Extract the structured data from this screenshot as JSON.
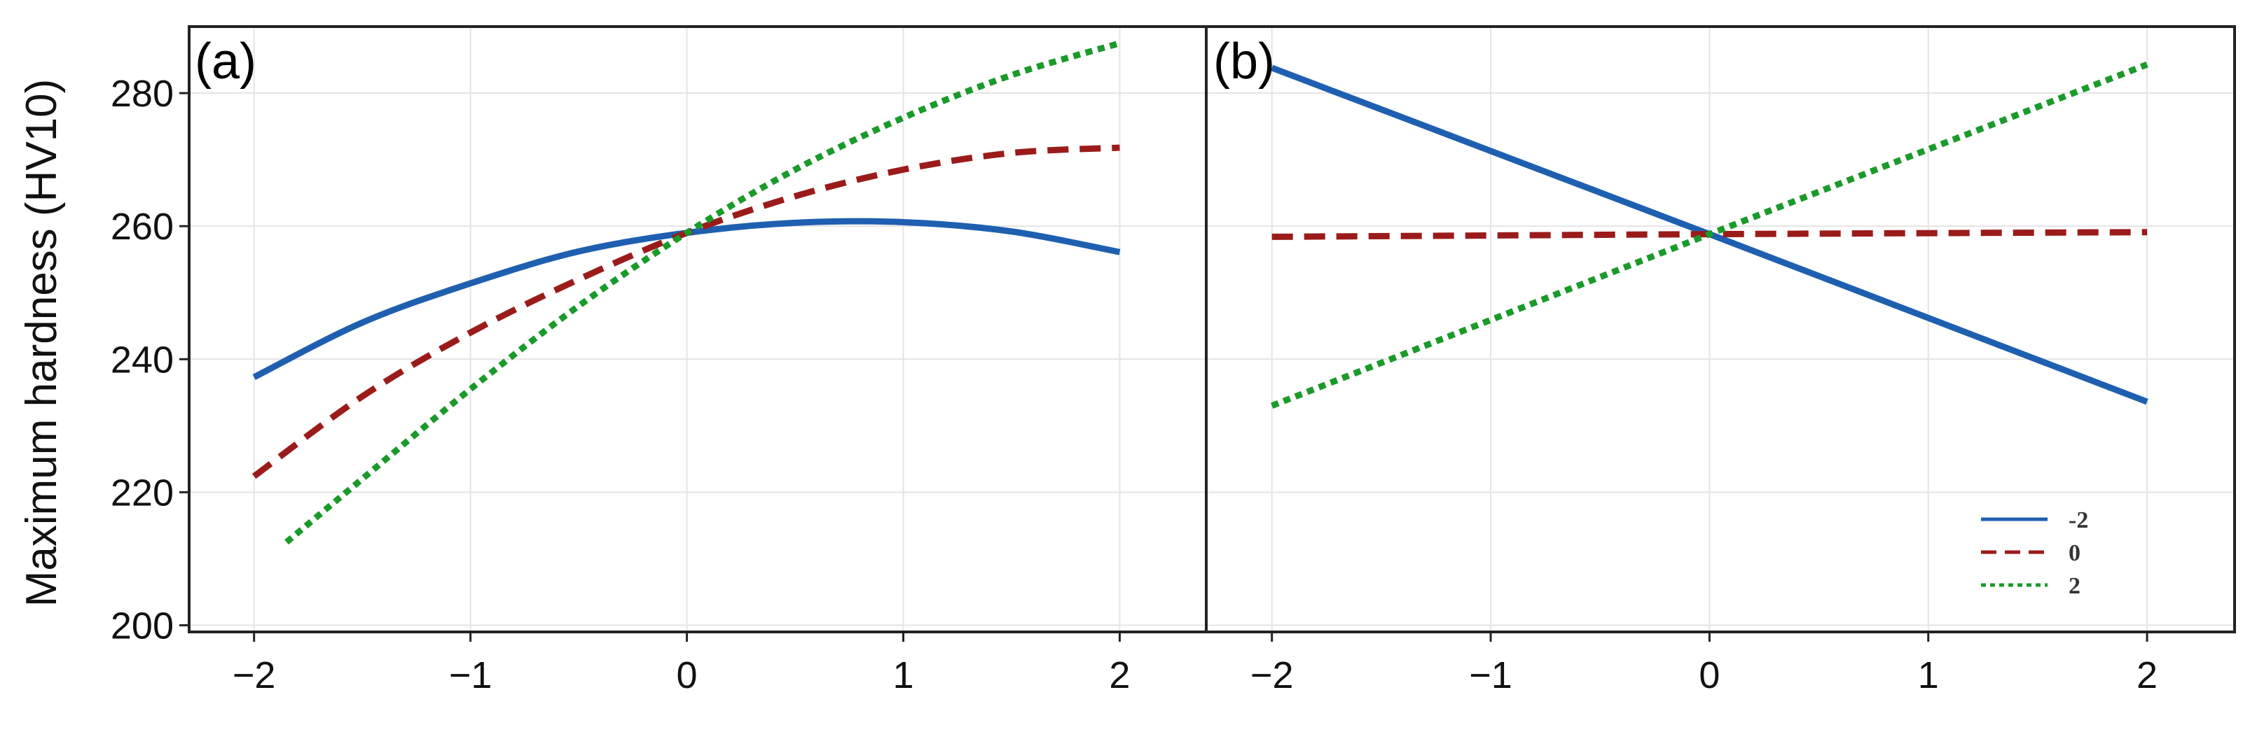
{
  "ylabel": "Maximum hardness (HV10)",
  "colors": {
    "blue": "#1f5fb0",
    "red": "#9b1b1b",
    "green": "#1a9a2a"
  },
  "chart_data": [
    {
      "type": "line",
      "panel_label": "(a)",
      "xlabel": "",
      "ylabel": "Maximum hardness (HV10)",
      "xlim": [
        -2.3,
        2.4
      ],
      "ylim": [
        199,
        290
      ],
      "x_ticks": [
        "−2",
        "−1",
        "0",
        "1",
        "2"
      ],
      "x_tick_values": [
        -2,
        -1,
        0,
        1,
        2
      ],
      "y_ticks": [
        "200",
        "220",
        "240",
        "260",
        "280"
      ],
      "y_tick_values": [
        200,
        220,
        240,
        260,
        280
      ],
      "grid": true,
      "series": [
        {
          "name": "-2",
          "style": "solid",
          "color": "#1f5fb0",
          "x": [
            -2,
            -1.5,
            -1,
            -0.5,
            0,
            0.5,
            1,
            1.5,
            2
          ],
          "y": [
            237.3,
            245.5,
            251.4,
            256.2,
            259.0,
            260.5,
            260.6,
            259.2,
            256.1
          ]
        },
        {
          "name": "0",
          "style": "dashed",
          "color": "#9b1b1b",
          "x": [
            -2,
            -1.5,
            -1,
            -0.5,
            0,
            0.5,
            1,
            1.5,
            2
          ],
          "y": [
            222.4,
            234.4,
            244.0,
            252.0,
            259.0,
            264.5,
            268.5,
            271.0,
            271.8
          ]
        },
        {
          "name": "2",
          "style": "dotted",
          "color": "#1a9a2a",
          "x": [
            -1.85,
            -1.5,
            -1,
            -0.5,
            0,
            0.5,
            1,
            1.5,
            2
          ],
          "y": [
            212.5,
            222.0,
            235.5,
            248.0,
            259.0,
            268.5,
            276.3,
            282.7,
            287.5
          ]
        }
      ]
    },
    {
      "type": "line",
      "panel_label": "(b)",
      "xlabel": "",
      "ylabel": "",
      "xlim": [
        -2.3,
        2.4
      ],
      "ylim": [
        199,
        290
      ],
      "x_ticks": [
        "−2",
        "−1",
        "0",
        "1",
        "2"
      ],
      "x_tick_values": [
        -2,
        -1,
        0,
        1,
        2
      ],
      "y_tick_values": [
        200,
        220,
        240,
        260,
        280
      ],
      "grid": true,
      "legend_position": "bottom-right",
      "series": [
        {
          "name": "-2",
          "style": "solid",
          "color": "#1f5fb0",
          "x": [
            -2,
            0,
            2
          ],
          "y": [
            283.8,
            258.8,
            233.6
          ]
        },
        {
          "name": "0",
          "style": "dashed",
          "color": "#9b1b1b",
          "x": [
            -2,
            0,
            2
          ],
          "y": [
            258.4,
            258.8,
            259.1
          ]
        },
        {
          "name": "2",
          "style": "dotted",
          "color": "#1a9a2a",
          "x": [
            -2,
            0,
            2
          ],
          "y": [
            233.0,
            258.8,
            284.3
          ]
        }
      ],
      "legend": [
        {
          "label": "-2",
          "style": "solid",
          "color": "#1f5fb0"
        },
        {
          "label": "0",
          "style": "dashed",
          "color": "#9b1b1b"
        },
        {
          "label": "2",
          "style": "dotted",
          "color": "#1a9a2a"
        }
      ]
    }
  ]
}
